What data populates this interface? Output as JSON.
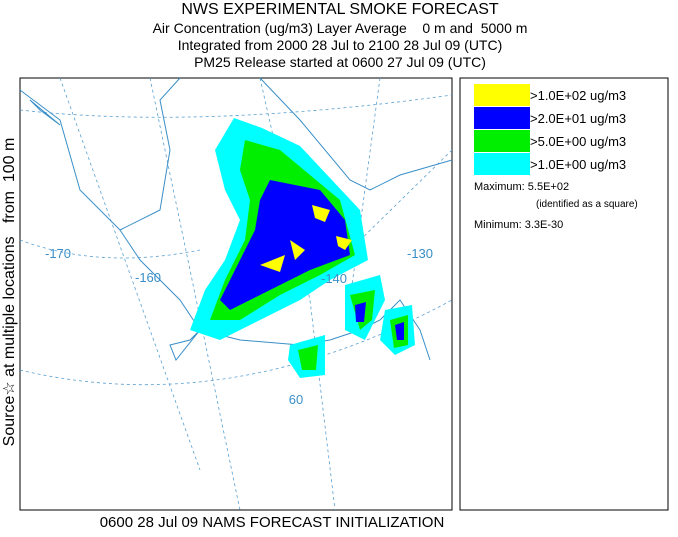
{
  "header": {
    "lines": [
      "NWS EXPERIMENTAL SMOKE FORECAST",
      "Air Concentration (ug/m3) Layer Average    0 m and  5000 m",
      "Integrated from 2000 28 Jul to 2100 28 Jul 09 (UTC)",
      "PM25 Release started at 0600 27 Jul 09 (UTC)"
    ]
  },
  "source_label": "Source☆ at multiple locations   from  100 m",
  "footer": "0600 28 Jul 09 NAMS FORECAST INITIALIZATION",
  "map": {
    "labels": [
      "-170",
      "-160",
      "-140",
      "-130",
      "60"
    ]
  },
  "legend": {
    "entries": [
      {
        "label": ">1.0E+02 ug/m3",
        "color": "#ffff00"
      },
      {
        "label": ">2.0E+01 ug/m3",
        "color": "#0000ff"
      },
      {
        "label": ">5.0E+00 ug/m3",
        "color": "#00ee00"
      },
      {
        "label": ">1.0E+00 ug/m3",
        "color": "#00ffff"
      }
    ],
    "maximum": "Maximum: 5.5E+02",
    "maximum_note": "(identified as a square)",
    "minimum": "Minimum: 3.3E-30"
  }
}
